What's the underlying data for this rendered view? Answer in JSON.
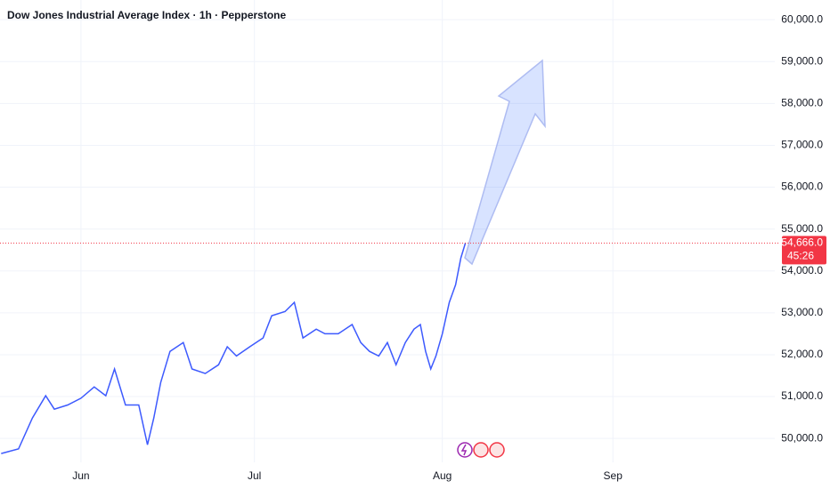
{
  "chart_data": {
    "type": "line",
    "title": "Dow Jones Industrial Average Index · 1h · Pepperstone",
    "series": [
      {
        "name": "Dow Jones Industrial Average Index",
        "color": "#3d5afe",
        "x": [
          -13.8,
          -10.8,
          -8.4,
          -6.1,
          -4.6,
          -2.3,
          0,
          2.3,
          4.3,
          5.8,
          7.7,
          10.0,
          11.5,
          12.6,
          13.8,
          15.4,
          17.7,
          19.2,
          21.5,
          23.8,
          25.3,
          26.9,
          29.2,
          31.5,
          33.0,
          35.3,
          36.9,
          38.4,
          40.7,
          42.2,
          44.5,
          46.9,
          48.4,
          49.9,
          51.5,
          53.0,
          54.5,
          56.1,
          57.6,
          58.7,
          59.6,
          60.5,
          61.4,
          62.5,
          63.7,
          64.8,
          65.7,
          66.5
        ],
        "values": [
          49640,
          49750,
          50490,
          51020,
          50700,
          50800,
          50960,
          51230,
          51020,
          51660,
          50800,
          50800,
          49850,
          50490,
          51340,
          52080,
          52290,
          51660,
          51550,
          51760,
          52190,
          51970,
          52190,
          52400,
          52930,
          53030,
          53250,
          52400,
          52610,
          52500,
          52500,
          52720,
          52290,
          52080,
          51970,
          52290,
          51760,
          52290,
          52610,
          52720,
          52080,
          51660,
          51970,
          52500,
          53250,
          53670,
          54310,
          54666
        ]
      }
    ],
    "xlim": [
      -14,
      120
    ],
    "xticks": [
      {
        "value": 0,
        "label": "Jun"
      },
      {
        "value": 30,
        "label": "Jul"
      },
      {
        "value": 62.5,
        "label": "Aug"
      },
      {
        "value": 92,
        "label": "Sep"
      }
    ],
    "ylim": [
      49430,
      60470
    ],
    "yticks": [
      {
        "value": 50000,
        "label": "50,000.0"
      },
      {
        "value": 51000,
        "label": "51,000.0"
      },
      {
        "value": 52000,
        "label": "52,000.0"
      },
      {
        "value": 53000,
        "label": "53,000.0"
      },
      {
        "value": 54000,
        "label": "54,000.0"
      },
      {
        "value": 55000,
        "label": "55,000.0"
      },
      {
        "value": 56000,
        "label": "56,000.0"
      },
      {
        "value": 57000,
        "label": "57,000.0"
      },
      {
        "value": 58000,
        "label": "58,000.0"
      },
      {
        "value": 59000,
        "label": "59,000.0"
      },
      {
        "value": 60000,
        "label": "60,000.0"
      }
    ],
    "last_price": {
      "value": 54666,
      "label": "54,666.0",
      "color": "#f23645"
    },
    "countdown": "45:26",
    "grid": true
  }
}
